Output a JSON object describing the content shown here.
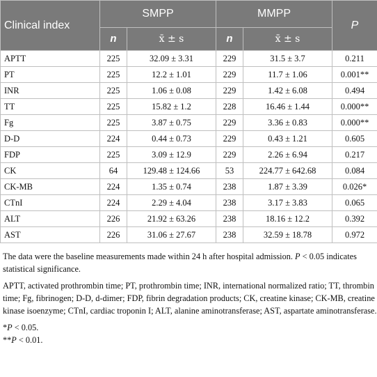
{
  "table": {
    "header": {
      "clinical_index": "Clinical index",
      "group1": "SMPP",
      "group2": "MMPP",
      "p": "P",
      "n": "n",
      "mean_sd": "x̄ ± s"
    },
    "rows": [
      {
        "index": "APTT",
        "n1": "225",
        "v1": "32.09 ± 3.31",
        "n2": "229",
        "v2": "31.5 ± 3.7",
        "p": "0.211"
      },
      {
        "index": "PT",
        "n1": "225",
        "v1": "12.2 ± 1.01",
        "n2": "229",
        "v2": "11.7 ± 1.06",
        "p": "0.001**"
      },
      {
        "index": "INR",
        "n1": "225",
        "v1": "1.06 ± 0.08",
        "n2": "229",
        "v2": "1.42 ± 6.08",
        "p": "0.494"
      },
      {
        "index": "TT",
        "n1": "225",
        "v1": "15.82 ± 1.2",
        "n2": "228",
        "v2": "16.46 ± 1.44",
        "p": "0.000**"
      },
      {
        "index": "Fg",
        "n1": "225",
        "v1": "3.87 ± 0.75",
        "n2": "229",
        "v2": "3.36 ± 0.83",
        "p": "0.000**"
      },
      {
        "index": "D-D",
        "n1": "224",
        "v1": "0.44 ± 0.73",
        "n2": "229",
        "v2": "0.43 ± 1.21",
        "p": "0.605"
      },
      {
        "index": "FDP",
        "n1": "225",
        "v1": "3.09 ± 12.9",
        "n2": "229",
        "v2": "2.26 ± 6.94",
        "p": "0.217"
      },
      {
        "index": "CK",
        "n1": "64",
        "v1": "129.48 ± 124.66",
        "n2": "53",
        "v2": "224.77 ± 642.68",
        "p": "0.084"
      },
      {
        "index": "CK-MB",
        "n1": "224",
        "v1": "1.35 ± 0.74",
        "n2": "238",
        "v2": "1.87 ± 3.39",
        "p": "0.026*"
      },
      {
        "index": "CTnI",
        "n1": "224",
        "v1": "2.29 ± 4.04",
        "n2": "238",
        "v2": "3.17 ± 3.83",
        "p": "0.065"
      },
      {
        "index": "ALT",
        "n1": "226",
        "v1": "21.92 ± 63.26",
        "n2": "238",
        "v2": "18.16 ± 12.2",
        "p": "0.392"
      },
      {
        "index": "AST",
        "n1": "226",
        "v1": "31.06 ± 27.67",
        "n2": "238",
        "v2": "32.59 ± 18.78",
        "p": "0.972"
      }
    ]
  },
  "footnotes": {
    "note1_a": "The data were the baseline measurements made within 24 h after hospital admission. ",
    "note1_p": "P",
    "note1_b": " < 0.05 indicates statistical significance.",
    "abbreviations": "APTT, activated prothrombin time; PT, prothrombin time; INR, international normalized ratio; TT, thrombin time; Fg, fibrinogen; D-D, d-dimer; FDP, fibrin degradation products; CK, creatine kinase; CK-MB, creatine kinase isoenzyme; CTnI, cardiac troponin I; ALT, alanine aminotransferase; AST, aspartate aminotransferase.",
    "sig1_mark": "*",
    "sig1_p": "P",
    "sig1_rest": " < 0.05.",
    "sig2_mark": "**",
    "sig2_p": "P",
    "sig2_rest": " < 0.01."
  }
}
